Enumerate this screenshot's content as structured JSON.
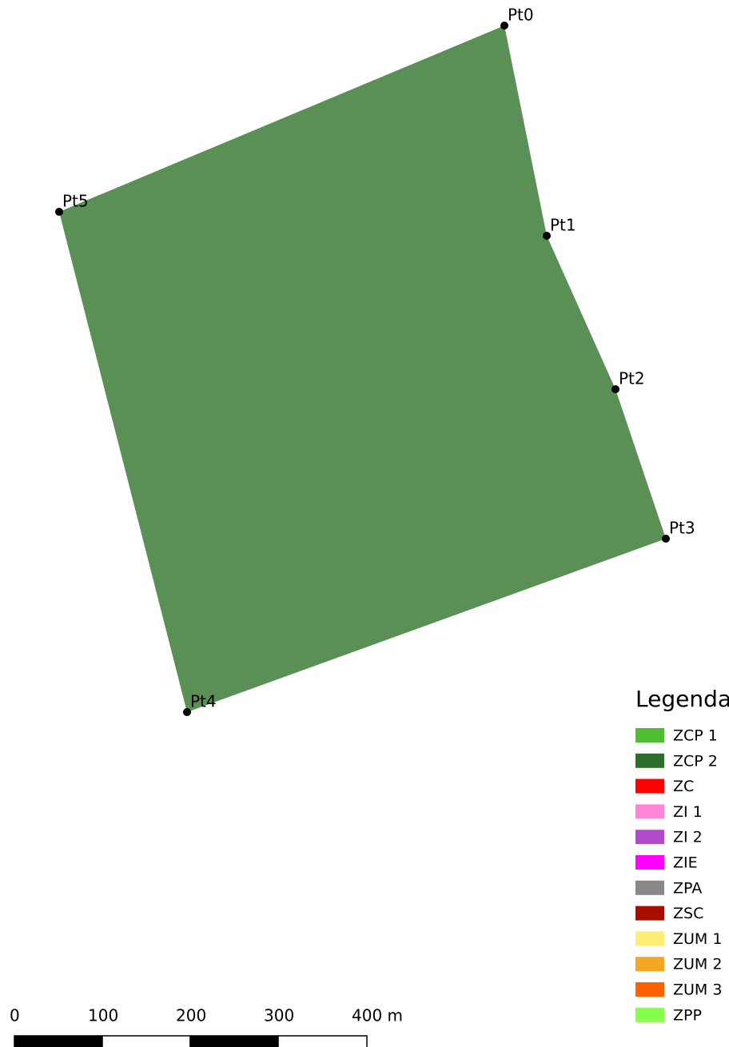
{
  "points": [
    "Pt0",
    "Pt1",
    "Pt2",
    "Pt3",
    "Pt4",
    "Pt5"
  ],
  "legend": {
    "title": "Legenda",
    "items": [
      {
        "label": "ZCP 1",
        "color": "#4dbd33"
      },
      {
        "label": "ZCP 2",
        "color": "#2d6e28"
      },
      {
        "label": "ZC",
        "color": "#ff0000"
      },
      {
        "label": "ZI 1",
        "color": "#ff85d9"
      },
      {
        "label": "ZI 2",
        "color": "#b04ccc"
      },
      {
        "label": "ZIE",
        "color": "#ff00ff"
      },
      {
        "label": "ZPA",
        "color": "#888888"
      },
      {
        "label": "ZSC",
        "color": "#a80d00"
      },
      {
        "label": "ZUM 1",
        "color": "#ffec72"
      },
      {
        "label": "ZUM 2",
        "color": "#f5a623"
      },
      {
        "label": "ZUM 3",
        "color": "#ff6000"
      },
      {
        "label": "ZPP",
        "color": "#86ff4d"
      }
    ]
  },
  "scale_bar": {
    "labels": [
      "0",
      "100",
      "200",
      "300",
      "400 m"
    ]
  }
}
